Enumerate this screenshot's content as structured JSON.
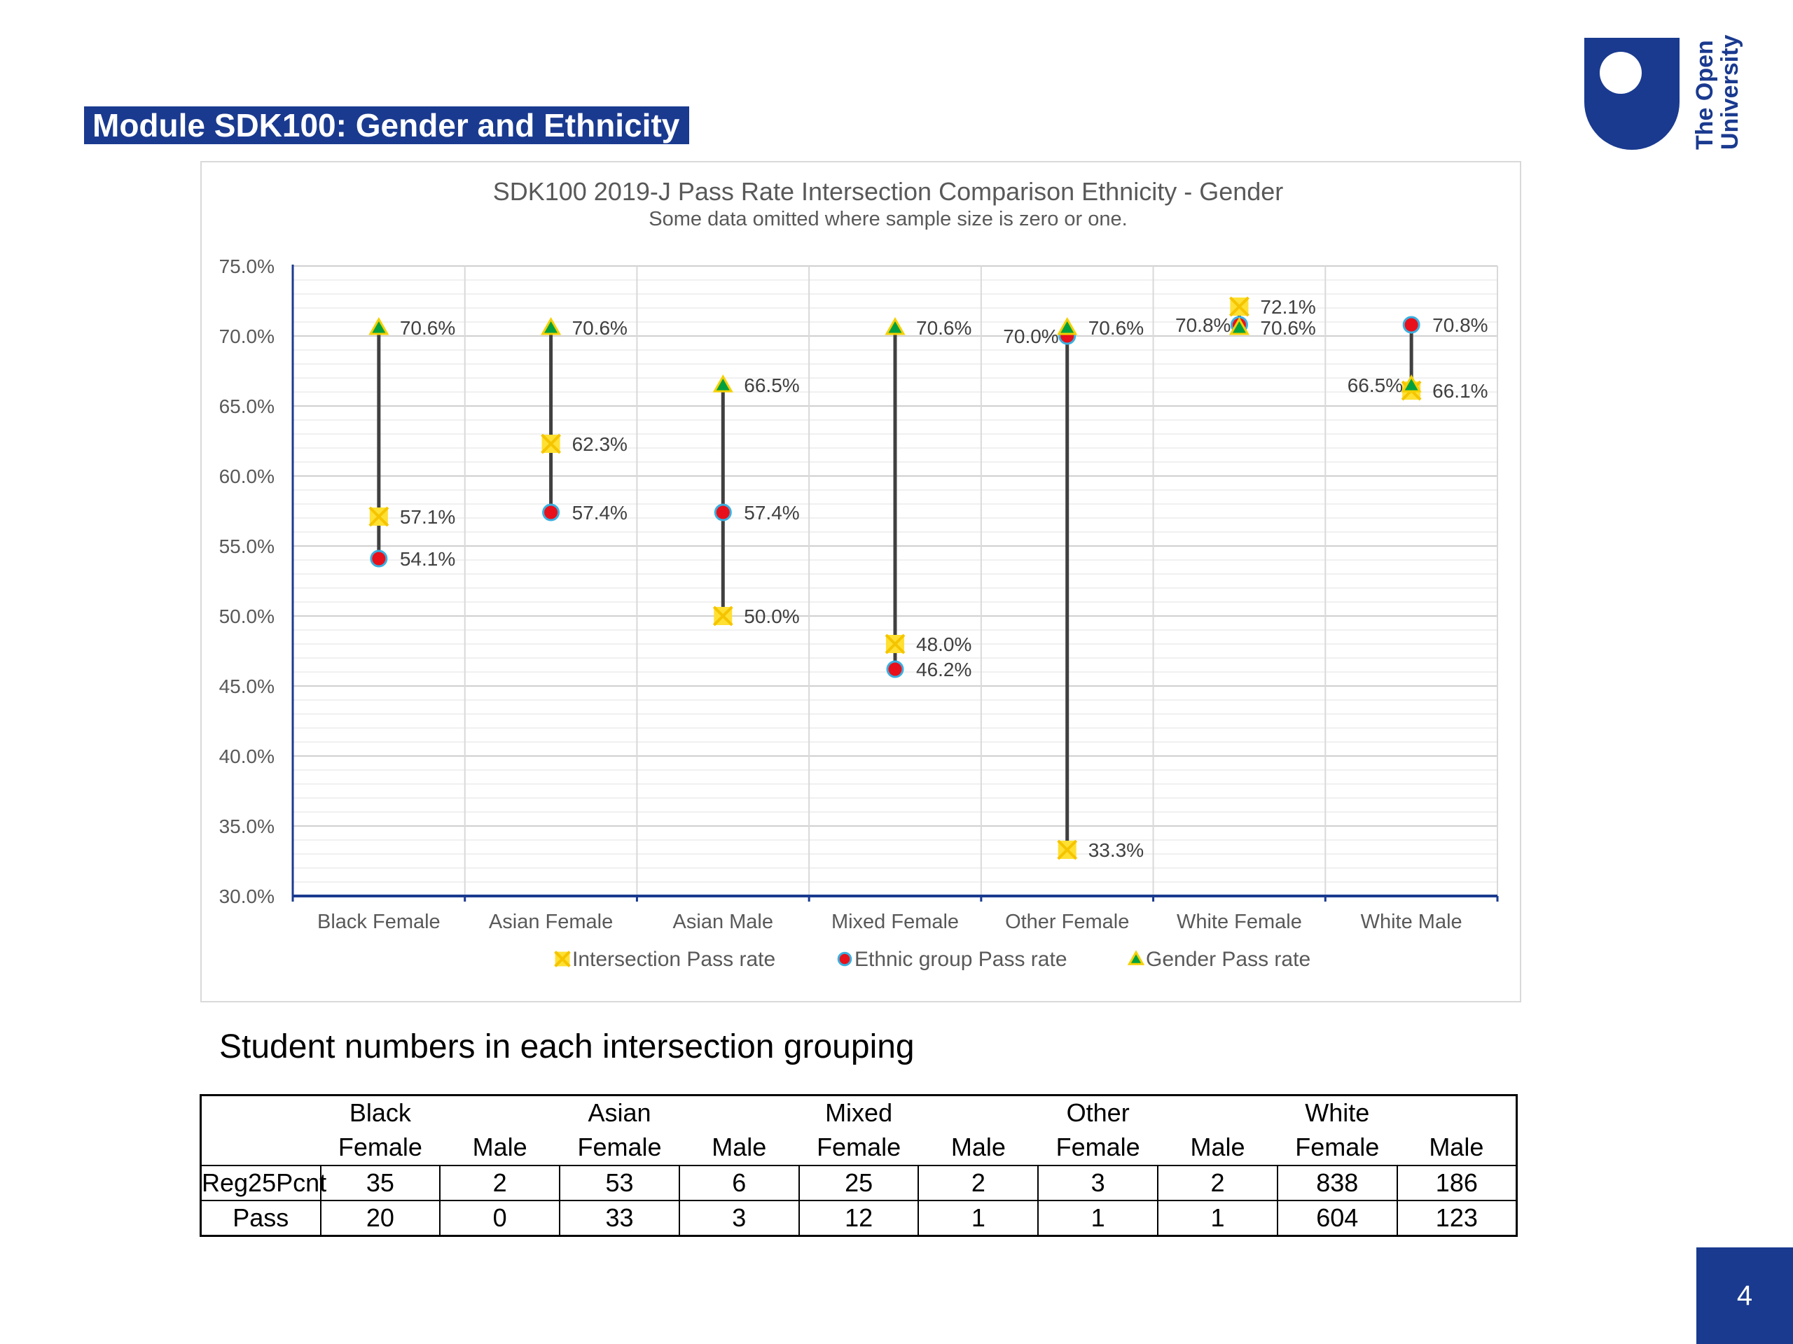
{
  "slide": {
    "title": "Module SDK100: Gender and Ethnicity",
    "logo_text_line1": "The Open",
    "logo_text_line2": "University",
    "page_number": "4"
  },
  "colors": {
    "brand": "#1a3a8f",
    "intersection": "#ffe033",
    "intersection_cross": "#f5c400",
    "ethnic": "#e8101a",
    "ethnic_outline": "#3ab0e0",
    "gender": "#00a040",
    "gender_outline": "#f5d000",
    "range_line": "#404040"
  },
  "chart_data": {
    "type": "scatter",
    "title": "SDK100 2019-J Pass Rate Intersection Comparison Ethnicity - Gender",
    "subtitle": "Some data omitted where sample size is zero or one.",
    "categories": [
      "Black Female",
      "Asian Female",
      "Asian Male",
      "Mixed Female",
      "Other Female",
      "White Female",
      "White Male"
    ],
    "ylim": [
      30.0,
      75.0
    ],
    "ytick_step": 5.0,
    "ytick_labels": [
      "30.0%",
      "35.0%",
      "40.0%",
      "45.0%",
      "50.0%",
      "55.0%",
      "60.0%",
      "65.0%",
      "70.0%",
      "75.0%"
    ],
    "grid": true,
    "legend_position": "bottom",
    "series": [
      {
        "name": "Intersection Pass rate",
        "marker": "square-cross",
        "values": [
          57.1,
          62.3,
          50.0,
          48.0,
          33.3,
          72.1,
          66.1
        ]
      },
      {
        "name": "Ethnic group Pass rate",
        "marker": "circle",
        "values": [
          54.1,
          57.4,
          57.4,
          46.2,
          70.0,
          70.8,
          70.8
        ]
      },
      {
        "name": "Gender Pass rate",
        "marker": "triangle",
        "values": [
          70.6,
          70.6,
          66.5,
          70.6,
          70.6,
          70.6,
          66.5
        ]
      }
    ],
    "data_labels": [
      {
        "cat": 0,
        "value": 70.6,
        "text": "70.6%",
        "side": "right"
      },
      {
        "cat": 0,
        "value": 57.1,
        "text": "57.1%",
        "side": "right"
      },
      {
        "cat": 0,
        "value": 54.1,
        "text": "54.1%",
        "side": "right"
      },
      {
        "cat": 1,
        "value": 70.6,
        "text": "70.6%",
        "side": "right"
      },
      {
        "cat": 1,
        "value": 62.3,
        "text": "62.3%",
        "side": "right"
      },
      {
        "cat": 1,
        "value": 57.4,
        "text": "57.4%",
        "side": "right"
      },
      {
        "cat": 2,
        "value": 66.5,
        "text": "66.5%",
        "side": "right"
      },
      {
        "cat": 2,
        "value": 57.4,
        "text": "57.4%",
        "side": "right"
      },
      {
        "cat": 2,
        "value": 50.0,
        "text": "50.0%",
        "side": "right"
      },
      {
        "cat": 3,
        "value": 70.6,
        "text": "70.6%",
        "side": "right"
      },
      {
        "cat": 3,
        "value": 48.0,
        "text": "48.0%",
        "side": "right"
      },
      {
        "cat": 3,
        "value": 46.2,
        "text": "46.2%",
        "side": "right"
      },
      {
        "cat": 4,
        "value": 70.0,
        "text": "70.0%",
        "side": "left"
      },
      {
        "cat": 4,
        "value": 70.6,
        "text": "70.6%",
        "side": "right"
      },
      {
        "cat": 4,
        "value": 33.3,
        "text": "33.3%",
        "side": "right"
      },
      {
        "cat": 5,
        "value": 72.1,
        "text": "72.1%",
        "side": "right"
      },
      {
        "cat": 5,
        "value": 70.8,
        "text": "70.8%",
        "side": "left"
      },
      {
        "cat": 5,
        "value": 70.6,
        "text": "70.6%",
        "side": "right"
      },
      {
        "cat": 6,
        "value": 70.8,
        "text": "70.8%",
        "side": "right"
      },
      {
        "cat": 6,
        "value": 66.5,
        "text": "66.5%",
        "side": "left"
      },
      {
        "cat": 6,
        "value": 66.1,
        "text": "66.1%",
        "side": "right"
      }
    ]
  },
  "table": {
    "caption": "Student numbers in each intersection grouping",
    "groups": [
      "Black",
      "Asian",
      "Mixed",
      "Other",
      "White"
    ],
    "subheaders": [
      "Female",
      "Male",
      "Female",
      "Male",
      "Female",
      "Male",
      "Female",
      "Male",
      "Female",
      "Male"
    ],
    "rows": [
      {
        "label": "Reg25Pcnt",
        "values": [
          "35",
          "2",
          "53",
          "6",
          "25",
          "2",
          "3",
          "2",
          "838",
          "186"
        ]
      },
      {
        "label": "Pass",
        "values": [
          "20",
          "0",
          "33",
          "3",
          "12",
          "1",
          "1",
          "1",
          "604",
          "123"
        ]
      }
    ]
  }
}
